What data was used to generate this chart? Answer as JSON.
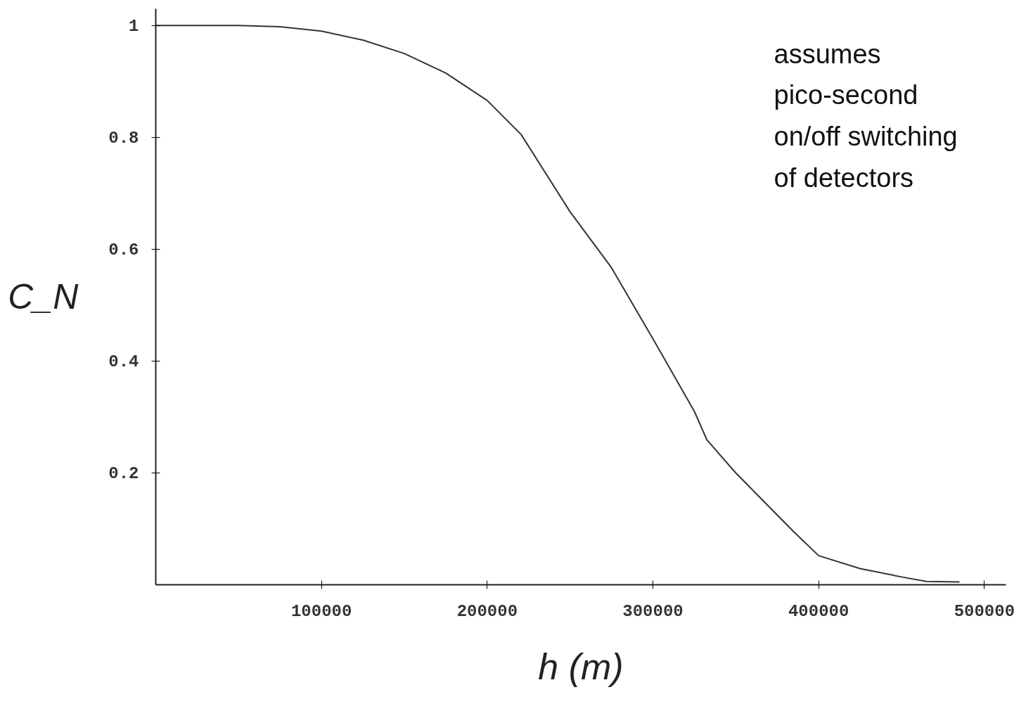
{
  "chart_data": {
    "type": "line",
    "xlabel": "h (m)",
    "ylabel": "C_N",
    "annotations": [
      "assumes\npico-second\non/off switching\nof detectors"
    ],
    "xlim": [
      0,
      513000
    ],
    "ylim": [
      0,
      1.03
    ],
    "xticks": [
      100000,
      200000,
      300000,
      400000,
      500000
    ],
    "yticks": [
      0.2,
      0.4,
      0.6,
      0.8,
      1
    ],
    "grid": false,
    "marker": "none",
    "line_style": "solid",
    "series": [
      {
        "color": "#333333",
        "x": [
          0,
          50000,
          75000,
          100000,
          125000,
          150000,
          175000,
          200000,
          220500,
          250000,
          275000,
          300000,
          325000,
          332600,
          350000,
          384900,
          400000,
          425000,
          450000,
          465000,
          485000
        ],
        "values": [
          1,
          1,
          0.998,
          0.99,
          0.974,
          0.95,
          0.915,
          0.866,
          0.805,
          0.667,
          0.567,
          0.44,
          0.31,
          0.259,
          0.2,
          0.095,
          0.052,
          0.029,
          0.014,
          0.006,
          0.005
        ]
      }
    ]
  }
}
